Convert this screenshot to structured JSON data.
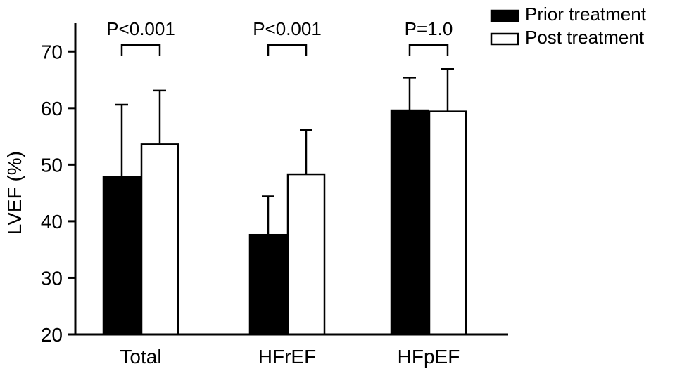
{
  "figure": {
    "description": "Grouped bar chart of LVEF before and after treatment"
  },
  "chart_data": {
    "type": "bar",
    "title": "",
    "xlabel": "",
    "ylabel": "LVEF (%)",
    "ylim": [
      20,
      75
    ],
    "yticks": [
      20,
      30,
      40,
      50,
      60,
      70
    ],
    "categories": [
      "Total",
      "HFrEF",
      "HFpEF"
    ],
    "series": [
      {
        "name": "Prior treatment",
        "color": "#000000",
        "values": [
          47.9,
          37.6,
          59.6
        ],
        "errors_upper": [
          12.7,
          6.8,
          5.8
        ]
      },
      {
        "name": "Post treatment",
        "color": "#ffffff",
        "values": [
          53.6,
          48.3,
          59.4
        ],
        "errors_upper": [
          9.5,
          7.8,
          7.5
        ]
      }
    ],
    "annotations": [
      {
        "category": "Total",
        "label": "P<0.001"
      },
      {
        "category": "HFrEF",
        "label": "P<0.001"
      },
      {
        "category": "HFpEF",
        "label": "P=1.0"
      }
    ],
    "legend": {
      "position": "top-right",
      "entries": [
        "Prior treatment",
        "Post treatment"
      ]
    },
    "grid": false,
    "axis_color": "#000000",
    "error_bar_direction": "upper-only"
  }
}
